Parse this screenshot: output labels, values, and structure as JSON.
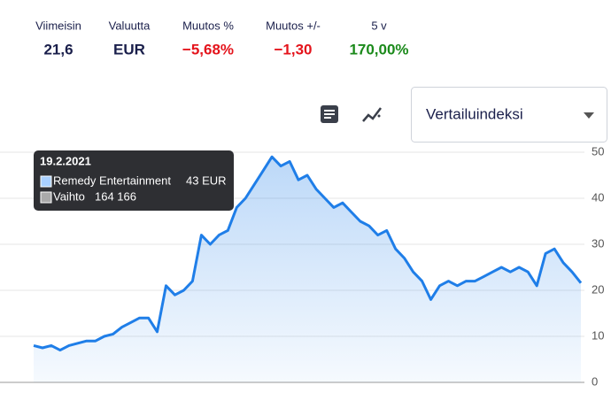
{
  "header": {
    "labels": [
      "Viimeisin",
      "Valuutta",
      "Muutos %",
      "Muutos +/-",
      "5 v"
    ],
    "values": [
      "21,6",
      "EUR",
      "−5,68%",
      "−1,30",
      "170,00%"
    ],
    "value_colors": [
      "#1a1f4b",
      "#1a1f4b",
      "#e4141c",
      "#e4141c",
      "#1b8a1b"
    ]
  },
  "dropdown": "Vertailuindeksi",
  "tooltip": {
    "date": "19.2.2021",
    "price": "43 EUR",
    "volume_label": "Vaihto",
    "volume": "164 166"
  },
  "chart_data": {
    "type": "line",
    "series": [
      {
        "name": "Remedy Entertainment",
        "color": "#1f7ee8",
        "values": [
          8,
          7.5,
          8,
          7,
          8,
          8.5,
          9,
          9,
          10,
          10.5,
          12,
          13,
          14,
          14,
          11,
          21,
          19,
          20,
          22,
          32,
          30,
          32,
          33,
          38,
          40,
          43,
          46,
          49,
          47,
          48,
          44,
          45,
          42,
          40,
          38,
          39,
          37,
          35,
          34,
          32,
          33,
          29,
          27,
          24,
          22,
          18,
          21,
          22,
          21,
          22,
          22,
          23,
          24,
          25,
          24,
          25,
          24,
          21,
          28,
          29,
          26,
          24,
          21.6
        ]
      }
    ],
    "ylim": [
      0,
      50
    ],
    "yticks": [
      0,
      10,
      20,
      30,
      40,
      50
    ],
    "grid": true
  }
}
